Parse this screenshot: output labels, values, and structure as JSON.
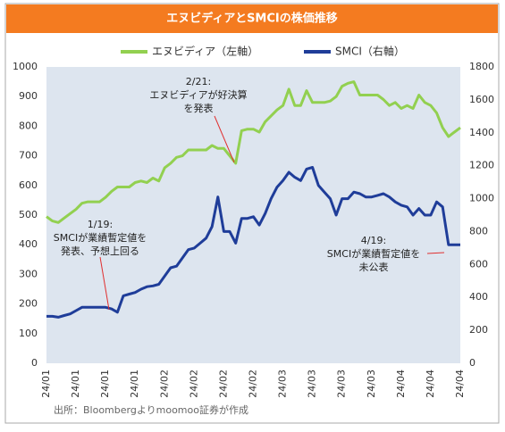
{
  "chart_data": {
    "type": "line",
    "title": "エヌビディアとSMCIの株価推移",
    "source": "出所：Bloombergよりmoomoo証券が作成",
    "categories": [
      "24/01",
      null,
      null,
      null,
      null,
      "24/01",
      null,
      null,
      null,
      null,
      "24/01",
      null,
      null,
      null,
      null,
      "24/01",
      null,
      null,
      null,
      null,
      "24/02",
      null,
      null,
      null,
      null,
      "24/02",
      null,
      null,
      null,
      null,
      "24/02",
      null,
      null,
      null,
      null,
      "24/02",
      null,
      null,
      null,
      null,
      "24/03",
      null,
      null,
      null,
      null,
      "24/03",
      null,
      null,
      null,
      null,
      "24/03",
      null,
      null,
      null,
      null,
      "24/03",
      null,
      null,
      null,
      null,
      "24/04",
      null,
      null,
      null,
      null,
      "24/04",
      null,
      null,
      null,
      null,
      "24/04"
    ],
    "series": [
      {
        "name": "エヌビディア（左軸）",
        "color": "#92d050",
        "axis": "y",
        "values": [
          495,
          480,
          475,
          490,
          505,
          520,
          540,
          545,
          545,
          545,
          560,
          580,
          595,
          595,
          595,
          610,
          615,
          610,
          625,
          615,
          660,
          675,
          695,
          700,
          720,
          720,
          720,
          720,
          735,
          725,
          725,
          700,
          675,
          785,
          790,
          790,
          780,
          815,
          835,
          855,
          870,
          925,
          870,
          870,
          920,
          880,
          880,
          880,
          885,
          900,
          935,
          945,
          950,
          905,
          905,
          905,
          905,
          890,
          870,
          880,
          860,
          870,
          860,
          905,
          880,
          870,
          845,
          795,
          765,
          780,
          795
        ]
      },
      {
        "name": "SMCI（右軸）",
        "color": "#1f3d99",
        "axis": "y2",
        "values": [
          285,
          285,
          280,
          290,
          300,
          320,
          340,
          340,
          340,
          340,
          340,
          330,
          310,
          410,
          420,
          430,
          450,
          465,
          470,
          480,
          530,
          580,
          590,
          640,
          690,
          700,
          730,
          760,
          830,
          1010,
          800,
          800,
          730,
          880,
          880,
          890,
          840,
          910,
          1000,
          1070,
          1110,
          1160,
          1130,
          1110,
          1180,
          1190,
          1080,
          1040,
          1000,
          900,
          1000,
          1000,
          1040,
          1030,
          1010,
          1010,
          1020,
          1030,
          1010,
          980,
          960,
          950,
          900,
          940,
          900,
          900,
          980,
          950,
          720,
          720,
          720
        ]
      }
    ],
    "ylim": [
      0,
      1000
    ],
    "yticks": [
      0,
      100,
      200,
      300,
      400,
      500,
      600,
      700,
      800,
      900,
      1000
    ],
    "y2lim": [
      0,
      1800
    ],
    "y2ticks": [
      0,
      200,
      400,
      600,
      800,
      1000,
      1200,
      1400,
      1600,
      1800
    ],
    "grid": false,
    "annotations": [
      {
        "lines": [
          "2/21:",
          "エヌビディアが好決算",
          "を発表"
        ]
      },
      {
        "lines": [
          "1/19:",
          "SMCIが業績暫定値を",
          "発表、予想上回る"
        ]
      },
      {
        "lines": [
          "4/19:",
          "SMCIが業績暫定値を",
          "未公表"
        ]
      }
    ]
  }
}
